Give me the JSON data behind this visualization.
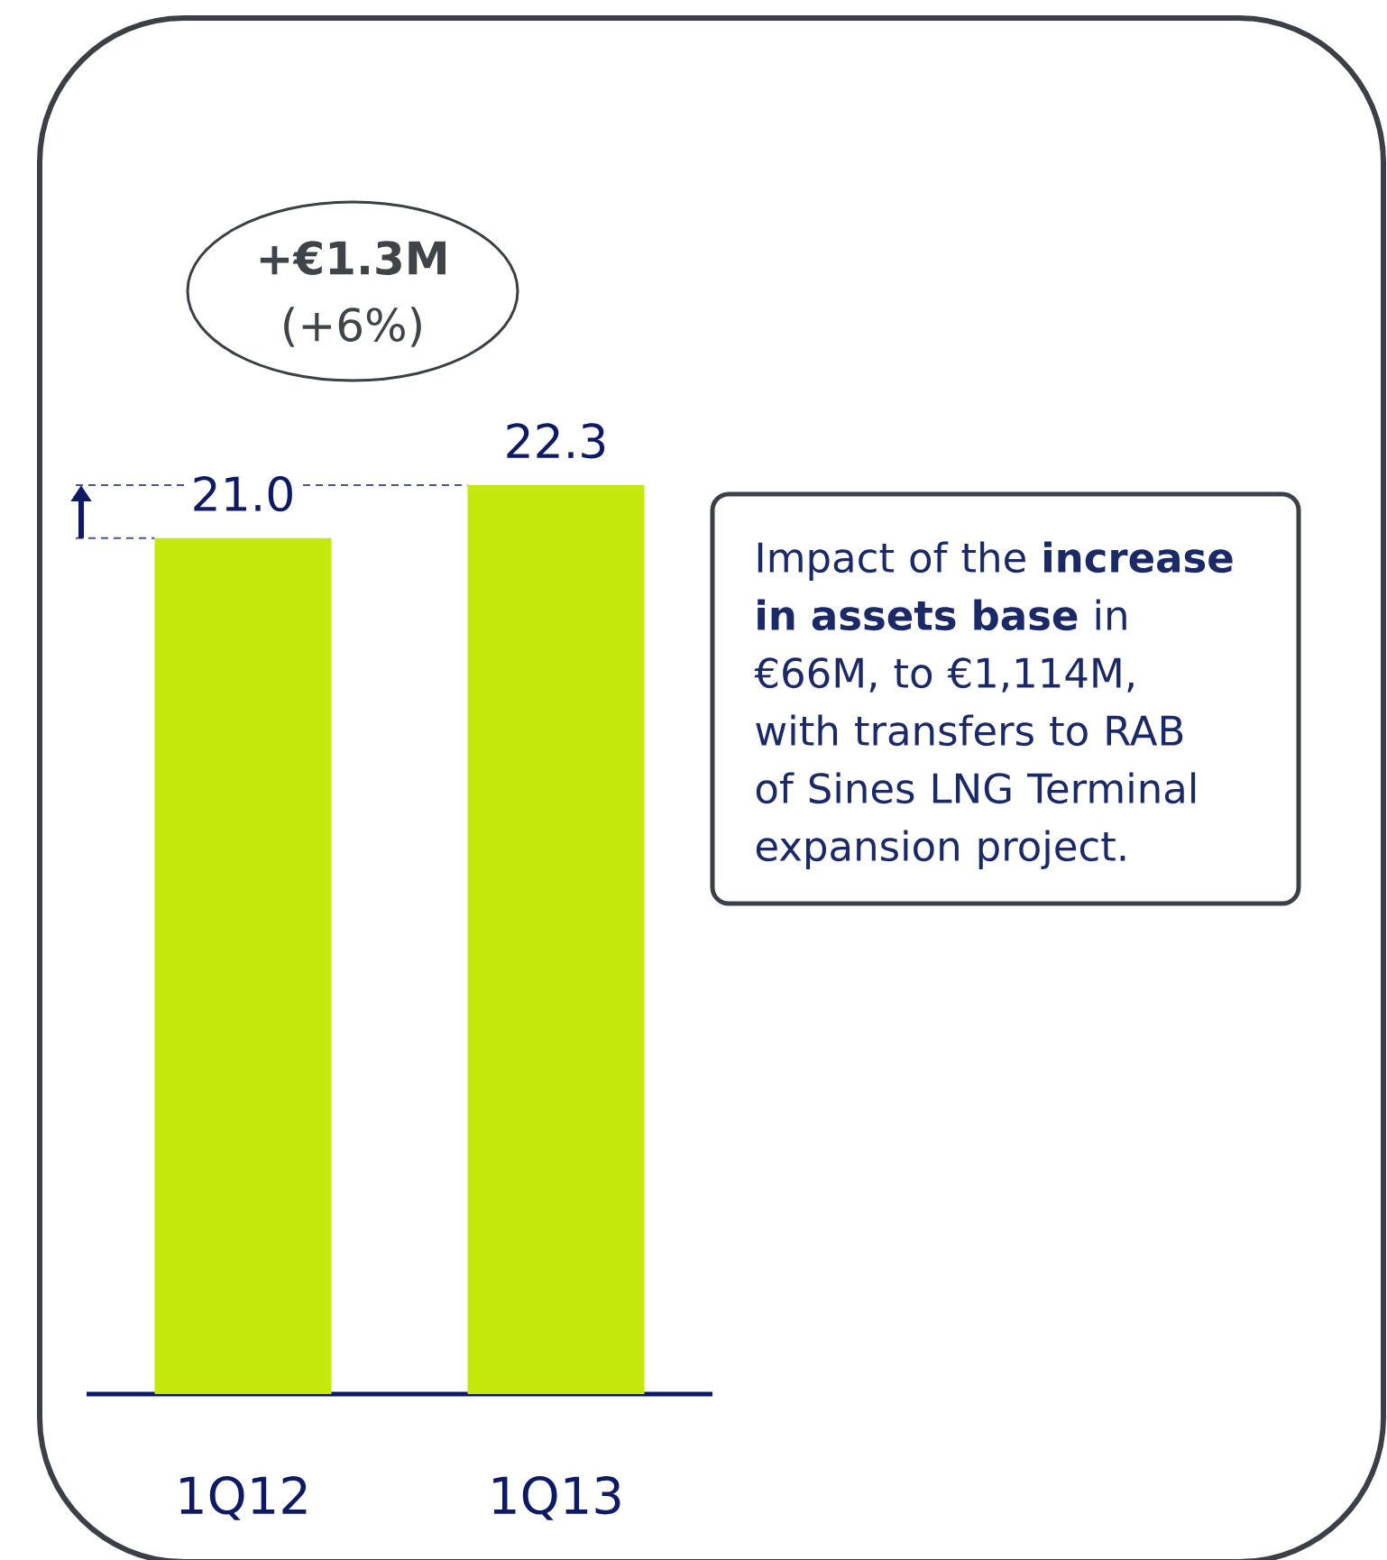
{
  "chart_data": {
    "type": "bar",
    "categories": [
      "1Q12",
      "1Q13"
    ],
    "values": [
      21.0,
      22.3
    ],
    "color": "#c5e80b",
    "value_labels": [
      "21.0",
      "22.3"
    ],
    "tick_labels": "x",
    "ref_lines": [
      {
        "axis": "y",
        "value": 22.3,
        "line_style": "dashed",
        "color": "#4a5591"
      },
      {
        "axis": "y",
        "value": 21.0,
        "line_style": "dashed",
        "color": "#4a5591"
      }
    ],
    "annotations": [
      "**+€1.3M** (+6%)",
      "Impact of the **increase in assets base** in €66M, to €1,114M, with transfers to RAB of Sines LNG Terminal expansion project."
    ]
  }
}
